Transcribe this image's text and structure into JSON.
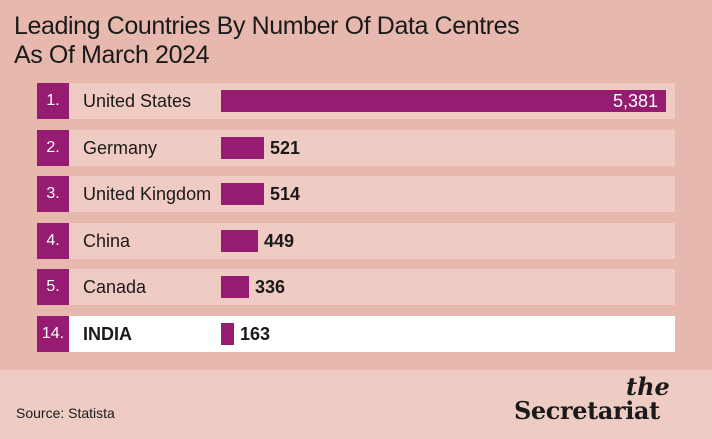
{
  "title_line1": "Leading Countries By Number Of Data Centres",
  "title_line2": "As Of March 2024",
  "source": "Source: Statista",
  "logo": {
    "the": "the",
    "name": "Secretariat"
  },
  "colors": {
    "bar": "#961c71",
    "rank_box": "#961c71",
    "row_bg": "#f0cbc3",
    "highlight_row_bg": "#ffffff",
    "panel_bg": "#e7b9ae",
    "footer_bg": "#eeccc4"
  },
  "chart_data": {
    "type": "bar",
    "orientation": "horizontal",
    "title": "Leading Countries By Number Of Data Centres As Of March 2024",
    "categories": [
      "United States",
      "Germany",
      "United Kingdom",
      "China",
      "Canada",
      "INDIA"
    ],
    "ranks": [
      "1.",
      "2.",
      "3.",
      "4.",
      "5.",
      "14."
    ],
    "values": [
      5381,
      521,
      514,
      449,
      336,
      163
    ],
    "value_labels": [
      "5,381",
      "521",
      "514",
      "449",
      "336",
      "163"
    ],
    "highlighted": "INDIA",
    "xlim": [
      0,
      5381
    ],
    "grid": false,
    "legend": "none"
  }
}
